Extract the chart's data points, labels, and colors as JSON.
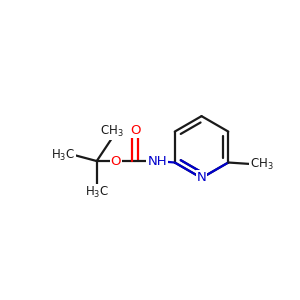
{
  "bg_color": "#ffffff",
  "bond_color": "#1a1a1a",
  "O_color": "#ff0000",
  "N_color": "#0000cc",
  "font_size": 8.5,
  "bond_width": 1.6,
  "figsize": [
    3.0,
    3.0
  ],
  "dpi": 100,
  "xlim": [
    0.0,
    1.0
  ],
  "ylim": [
    0.2,
    0.85
  ]
}
